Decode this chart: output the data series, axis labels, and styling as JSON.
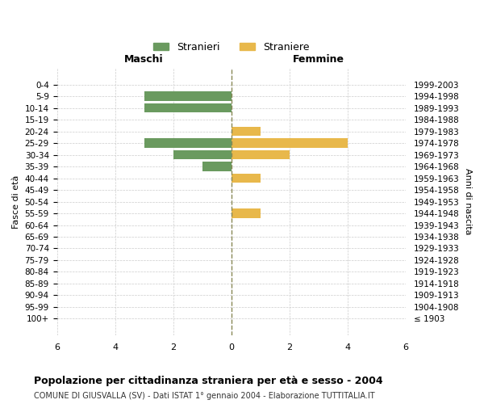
{
  "age_groups": [
    "100+",
    "95-99",
    "90-94",
    "85-89",
    "80-84",
    "75-79",
    "70-74",
    "65-69",
    "60-64",
    "55-59",
    "50-54",
    "45-49",
    "40-44",
    "35-39",
    "30-34",
    "25-29",
    "20-24",
    "15-19",
    "10-14",
    "5-9",
    "0-4"
  ],
  "birth_years": [
    "≤ 1903",
    "1904-1908",
    "1909-1913",
    "1914-1918",
    "1919-1923",
    "1924-1928",
    "1929-1933",
    "1934-1938",
    "1939-1943",
    "1944-1948",
    "1949-1953",
    "1954-1958",
    "1959-1963",
    "1964-1968",
    "1969-1973",
    "1974-1978",
    "1979-1983",
    "1984-1988",
    "1989-1993",
    "1994-1998",
    "1999-2003"
  ],
  "maschi": [
    0,
    0,
    0,
    0,
    0,
    0,
    0,
    0,
    0,
    0,
    0,
    0,
    0,
    1,
    2,
    3,
    0,
    0,
    3,
    3,
    0
  ],
  "femmine": [
    0,
    0,
    0,
    0,
    0,
    0,
    0,
    0,
    0,
    1,
    0,
    0,
    1,
    0,
    2,
    4,
    1,
    0,
    0,
    0,
    0
  ],
  "maschi_color": "#6a9a5f",
  "femmine_color": "#e8b84b",
  "title": "Popolazione per cittadinanza straniera per età e sesso - 2004",
  "subtitle": "COMUNE DI GIUSVALLA (SV) - Dati ISTAT 1° gennaio 2004 - Elaborazione TUTTITALIA.IT",
  "ylabel_left": "Fasce di età",
  "ylabel_right": "Anni di nascita",
  "xlabel_left": "Maschi",
  "xlabel_top_right": "Femmine",
  "xlim": 6,
  "legend_stranieri": "Stranieri",
  "legend_straniere": "Straniere",
  "bg_color": "#ffffff",
  "grid_color": "#cccccc",
  "bar_height": 0.8
}
